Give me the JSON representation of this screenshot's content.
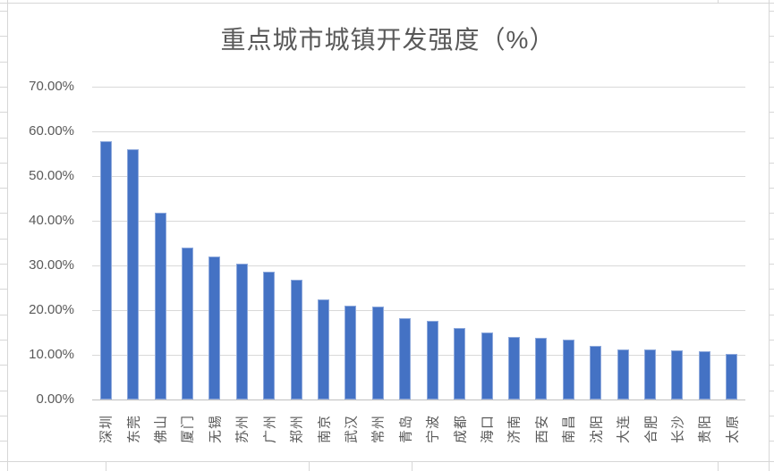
{
  "chart_data": {
    "type": "bar",
    "title": "重点城市城镇开发强度（%）",
    "categories": [
      "深圳",
      "东莞",
      "佛山",
      "厦门",
      "无锡",
      "苏州",
      "广州",
      "郑州",
      "南京",
      "武汉",
      "常州",
      "青岛",
      "宁波",
      "成都",
      "海口",
      "济南",
      "西安",
      "南昌",
      "沈阳",
      "大连",
      "合肥",
      "长沙",
      "贵阳",
      "太原"
    ],
    "values": [
      57.8,
      56.0,
      41.8,
      34.0,
      32.1,
      30.4,
      28.6,
      26.9,
      22.5,
      21.0,
      20.9,
      18.2,
      17.6,
      16.1,
      15.1,
      14.0,
      13.9,
      13.4,
      12.0,
      11.3,
      11.2,
      11.0,
      10.9,
      10.3
    ],
    "y_ticks": [
      "70.00%",
      "60.00%",
      "50.00%",
      "40.00%",
      "30.00%",
      "20.00%",
      "10.00%",
      "0.00%"
    ],
    "ylim": [
      0,
      70
    ],
    "grid": true,
    "legend": "none",
    "xlabel": "",
    "ylabel": "",
    "bar_color": "#4472C4",
    "bar_edge_color": "#8EA9DC",
    "text_color": "#595959",
    "gridline_color": "#D9D9D9",
    "axis_line_color": "#BFBFBF"
  }
}
